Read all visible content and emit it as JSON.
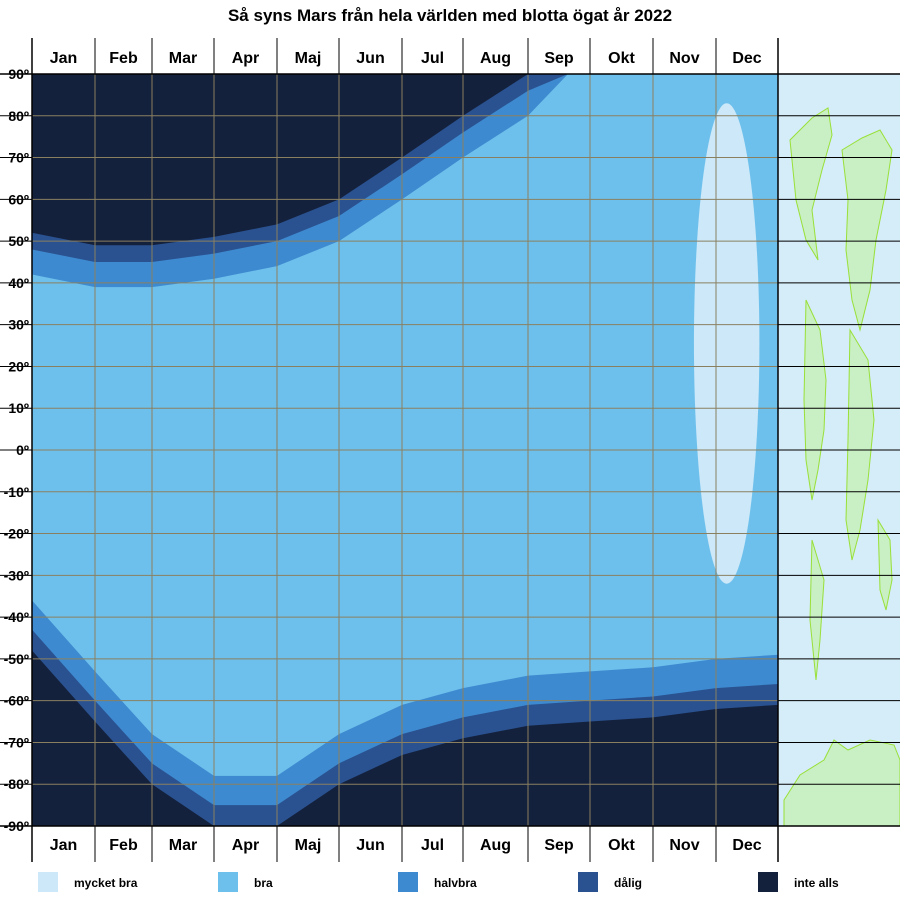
{
  "chart_data": {
    "type": "heatmap",
    "title": "Så syns Mars från hela världen med blotta ögat år 2022",
    "x_months": [
      "Jan",
      "Feb",
      "Mar",
      "Apr",
      "Maj",
      "Jun",
      "Jul",
      "Aug",
      "Sep",
      "Okt",
      "Nov",
      "Dec"
    ],
    "y_ticks": [
      "90º",
      "80º",
      "70º",
      "60º",
      "50º",
      "40º",
      "30º",
      "20º",
      "10º",
      "0º",
      "-10º",
      "-20º",
      "-30º",
      "-40º",
      "-50º",
      "-60º",
      "-70º",
      "-80º",
      "-90º"
    ],
    "ylim": [
      -90,
      90
    ],
    "categories": [
      {
        "label": "mycket bra",
        "color": "#cce8f9"
      },
      {
        "label": "bra",
        "color": "#6ec0ec"
      },
      {
        "label": "halvbra",
        "color": "#3e8ad0"
      },
      {
        "label": "dålig",
        "color": "#2a5290"
      },
      {
        "label": "inte alls",
        "color": "#14213d"
      }
    ],
    "regions": {
      "north_not_visible_lower_latitude": [
        {
          "month": 0,
          "lat": 52
        },
        {
          "month": 1,
          "lat": 49
        },
        {
          "month": 2,
          "lat": 49
        },
        {
          "month": 3,
          "lat": 51
        },
        {
          "month": 4,
          "lat": 54
        },
        {
          "month": 5,
          "lat": 60
        },
        {
          "month": 6,
          "lat": 70
        },
        {
          "month": 7,
          "lat": 80
        },
        {
          "month": 8,
          "lat": 90
        }
      ],
      "south_not_visible_upper_latitude": [
        {
          "month": 0,
          "lat": -48
        },
        {
          "month": 1,
          "lat": -65
        },
        {
          "month": 2,
          "lat": -80
        },
        {
          "month": 3,
          "lat": -90
        },
        {
          "month": 4,
          "lat": -90
        },
        {
          "month": 5,
          "lat": -80
        },
        {
          "month": 6,
          "lat": -73
        },
        {
          "month": 7,
          "lat": -69
        },
        {
          "month": 8,
          "lat": -66
        },
        {
          "month": 9,
          "lat": -65
        },
        {
          "month": 10,
          "lat": -64
        },
        {
          "month": 11,
          "lat": -62
        },
        {
          "month": 12,
          "lat": -61
        }
      ],
      "very_good_region": {
        "month_range": [
          10.65,
          11.7
        ],
        "lat_range": [
          -32,
          83
        ]
      }
    },
    "grid": true,
    "legend_position": "bottom"
  },
  "colors": {
    "frame": "#000000",
    "grid": "#8a8060",
    "map_ocean": "#d5ecf9",
    "map_land": "#c8f0c4",
    "map_coast": "#99e038"
  }
}
